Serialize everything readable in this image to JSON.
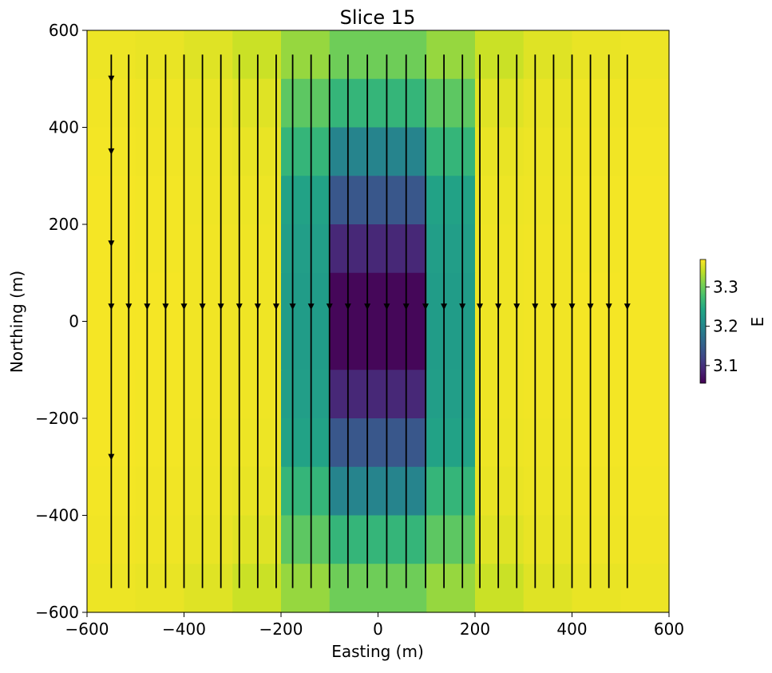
{
  "chart_data": {
    "type": "heatmap",
    "title": "Slice 15",
    "xlabel": "Easting (m)",
    "ylabel": "Northing (m)",
    "xlim": [
      -600,
      600
    ],
    "ylim": [
      -600,
      600
    ],
    "xticks": [
      -600,
      -400,
      -200,
      0,
      200,
      400,
      600
    ],
    "yticks": [
      -600,
      -400,
      -200,
      0,
      200,
      400,
      600
    ],
    "xtick_labels": [
      "−600",
      "−400",
      "−200",
      "0",
      "200",
      "400",
      "600"
    ],
    "ytick_labels": [
      "−600",
      "−400",
      "−200",
      "0",
      "200",
      "400",
      "600"
    ],
    "cell_size": 100,
    "x_centers": [
      -550,
      -450,
      -350,
      -250,
      -150,
      -50,
      50,
      150,
      250,
      350,
      450,
      550
    ],
    "y_centers": [
      550,
      450,
      350,
      250,
      150,
      50,
      -50,
      -150,
      -250,
      -350,
      -450,
      -550
    ],
    "values": [
      [
        3.362,
        3.36,
        3.355,
        3.345,
        3.32,
        3.3,
        3.3,
        3.32,
        3.345,
        3.355,
        3.36,
        3.362
      ],
      [
        3.364,
        3.363,
        3.36,
        3.355,
        3.29,
        3.262,
        3.262,
        3.29,
        3.355,
        3.36,
        3.363,
        3.364
      ],
      [
        3.365,
        3.364,
        3.362,
        3.36,
        3.262,
        3.196,
        3.196,
        3.262,
        3.36,
        3.362,
        3.364,
        3.365
      ],
      [
        3.366,
        3.365,
        3.363,
        3.362,
        3.236,
        3.14,
        3.14,
        3.236,
        3.362,
        3.363,
        3.365,
        3.366
      ],
      [
        3.366,
        3.365,
        3.364,
        3.363,
        3.23,
        3.09,
        3.09,
        3.23,
        3.363,
        3.364,
        3.365,
        3.366
      ],
      [
        3.366,
        3.366,
        3.364,
        3.363,
        3.228,
        3.06,
        3.06,
        3.228,
        3.363,
        3.364,
        3.366,
        3.366
      ],
      [
        3.366,
        3.366,
        3.364,
        3.363,
        3.228,
        3.06,
        3.06,
        3.228,
        3.363,
        3.364,
        3.366,
        3.366
      ],
      [
        3.366,
        3.365,
        3.364,
        3.363,
        3.23,
        3.09,
        3.09,
        3.23,
        3.363,
        3.364,
        3.365,
        3.366
      ],
      [
        3.366,
        3.365,
        3.363,
        3.362,
        3.236,
        3.14,
        3.14,
        3.236,
        3.362,
        3.363,
        3.365,
        3.366
      ],
      [
        3.365,
        3.364,
        3.362,
        3.36,
        3.262,
        3.196,
        3.196,
        3.262,
        3.36,
        3.362,
        3.364,
        3.365
      ],
      [
        3.364,
        3.363,
        3.36,
        3.355,
        3.29,
        3.262,
        3.262,
        3.29,
        3.355,
        3.36,
        3.363,
        3.364
      ],
      [
        3.362,
        3.36,
        3.355,
        3.345,
        3.32,
        3.3,
        3.3,
        3.32,
        3.345,
        3.355,
        3.36,
        3.362
      ]
    ],
    "streamlines": {
      "x_start": [
        -550,
        -514,
        -476,
        -438,
        -400,
        -362,
        -324,
        -286,
        -248,
        -210,
        -176,
        -138,
        -100,
        -62,
        -22,
        18,
        58,
        98,
        136,
        174,
        210,
        248,
        286,
        324,
        362,
        400,
        438,
        476,
        514
      ],
      "y_top": 550,
      "y_bottom": -550,
      "arrow_y": 30,
      "direction": "south"
    },
    "colorbar": {
      "label": "E",
      "range": [
        3.055,
        3.37
      ],
      "ticks": [
        3.1,
        3.2,
        3.3
      ],
      "tick_labels": [
        "3.1",
        "3.2",
        "3.3"
      ],
      "colormap": "viridis"
    }
  }
}
